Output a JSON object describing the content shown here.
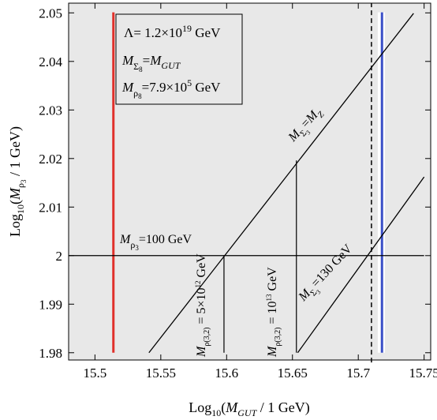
{
  "chart_data": {
    "type": "line",
    "xlabel": "Log₁₀(M_GUT / 1 GeV)",
    "ylabel": "Log₁₀(M_ρ₃ / 1 GeV)",
    "xlim": [
      15.48,
      15.755
    ],
    "ylim": [
      1.9785,
      2.052
    ],
    "x_ticks": [
      "15.5",
      "15.55",
      "15.6",
      "15.65",
      "15.7",
      "15.75"
    ],
    "y_ticks": [
      "1.98",
      "1.99",
      "2",
      "2.01",
      "2.02",
      "2.03",
      "2.04",
      "2.05"
    ],
    "background": "#e8e8e8",
    "legend_box": {
      "lines": [
        "Λ= 1.2×10¹⁹ GeV",
        "M_Σ₈=M_GUT",
        "M_ρ₈=7.9×10⁵ GeV"
      ]
    },
    "series": [
      {
        "x": [
          15.541,
          15.742
        ],
        "y": [
          1.98,
          2.0499
        ],
        "color": "#000000",
        "label": "M_Σ₃=M_Z"
      },
      {
        "x": [
          15.654,
          15.75
        ],
        "y": [
          1.98,
          2.0162
        ],
        "color": "#000000",
        "label": "M_Σ₃=130 GeV"
      },
      {
        "x": [
          15.48,
          15.75
        ],
        "y": [
          2.0,
          2.0
        ],
        "color": "#000000",
        "label": "M_ρ₃=100 GeV"
      }
    ],
    "vertical_lines": [
      {
        "x": 15.514,
        "y": [
          1.98,
          2.0501
        ],
        "color": "#e0302a",
        "width": 3
      },
      {
        "x": 15.71,
        "y": [
          1.978,
          2.052
        ],
        "color": "#000000",
        "dashed": true,
        "width": 1.5
      },
      {
        "x": 15.7175,
        "y": [
          1.98,
          2.0501
        ],
        "color": "#ffffff",
        "width": 9
      },
      {
        "x": 15.718,
        "y": [
          1.98,
          2.0501
        ],
        "color": "#3a4fc7",
        "width": 3
      },
      {
        "x": 15.598,
        "y": [
          1.98,
          2.0
        ],
        "color": "#000000",
        "width": 1.2,
        "label": "M_ρ(3,2) = 5×10¹² GeV"
      },
      {
        "x": 15.653,
        "y": [
          1.98,
          2.0196
        ],
        "color": "#000000",
        "width": 1.2,
        "label": "M_ρ(3,2) = 10¹³ GeV"
      }
    ],
    "annotations": {
      "mz_label": "M_Σ₃=M_Z",
      "rho3_label": "M_ρ₃=100 GeV",
      "m130_label": "M_Σ₃=130 GeV",
      "v1_label": "M_ρ(3,2) = 5×10¹² GeV",
      "v2_label": "M_ρ(3,2) = 10¹³ GeV"
    }
  }
}
